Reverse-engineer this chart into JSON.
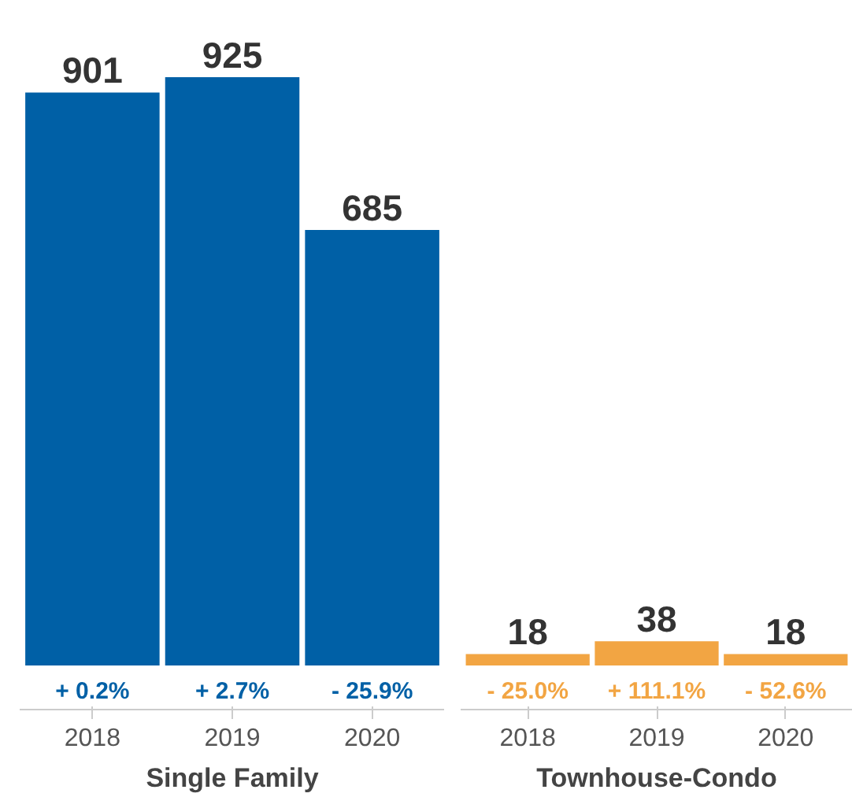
{
  "chart_data": [
    {
      "type": "bar",
      "xlabel": "Single Family",
      "categories": [
        "2018",
        "2019",
        "2020"
      ],
      "values": [
        901,
        925,
        685
      ],
      "color": "#0060a6",
      "data_labels": true,
      "annotations": [
        "+ 0.2%",
        "+ 2.7%",
        "- 25.9%"
      ]
    },
    {
      "type": "bar",
      "xlabel": "Townhouse-Condo",
      "categories": [
        "2018",
        "2019",
        "2020"
      ],
      "values": [
        18,
        38,
        18
      ],
      "color": "#f2a543",
      "data_labels": true,
      "annotations": [
        "- 25.0%",
        "+ 111.1%",
        "- 52.6%"
      ]
    }
  ]
}
